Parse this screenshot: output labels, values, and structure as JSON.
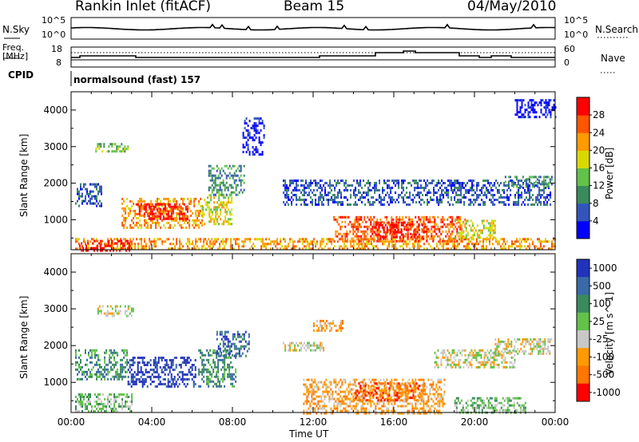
{
  "header": {
    "radar": "Rankin Inlet (fitACF)",
    "beam": "Beam 15",
    "date": "04/May/2010"
  },
  "noise_panel": {
    "left_label": "N.Sky",
    "left_ticks": [
      "10^5",
      "10^0"
    ],
    "right_ticks": [
      "10^5",
      "10^0"
    ],
    "right_label": "N.Search"
  },
  "freq_panel": {
    "left_label_1": "Freq.",
    "left_label_2": "[MHz]",
    "left_ticks": [
      "18",
      "8"
    ],
    "right_ticks": [
      "60",
      "0"
    ],
    "right_label": "Nave"
  },
  "cpid_panel": {
    "label": "CPID",
    "text": "normalsound (fast) 157"
  },
  "colors": {
    "power": [
      "#0000ff",
      "#3355bb",
      "#3a8a5c",
      "#62c24a",
      "#d9d900",
      "#ff9a00",
      "#ff5500",
      "#ff0000"
    ],
    "velocity": [
      "#2233bb",
      "#3a6aa8",
      "#3a8a5c",
      "#62c24a",
      "#c8c8c8",
      "#ff9a00",
      "#ff7700",
      "#ff0000"
    ]
  },
  "chart_data": [
    {
      "type": "heatmap",
      "title": "",
      "xlabel": "Time UT",
      "ylabel": "Slant Range [km]",
      "x_ticks": [
        "00:00",
        "04:00",
        "08:00",
        "12:00",
        "16:00",
        "20:00",
        "00:00"
      ],
      "y_ticks": [
        "1000",
        "2000",
        "3000",
        "4000"
      ],
      "xlim": [
        0,
        24
      ],
      "ylim": [
        180,
        4500
      ],
      "colorbar_label": "Power [dB]",
      "colorbar_ticks": [
        "4",
        "8",
        "12",
        "16",
        "20",
        "24",
        "28"
      ],
      "regions": [
        {
          "t": [
            0.2,
            24.0
          ],
          "r": [
            180,
            500
          ],
          "level": 5
        },
        {
          "t": [
            0.4,
            3.0
          ],
          "r": [
            180,
            450
          ],
          "level": 7
        },
        {
          "t": [
            2.5,
            6.5
          ],
          "r": [
            800,
            1600
          ],
          "level": 5
        },
        {
          "t": [
            3.2,
            5.8
          ],
          "r": [
            1000,
            1450
          ],
          "level": 7
        },
        {
          "t": [
            6.5,
            8.0
          ],
          "r": [
            900,
            1700
          ],
          "level": 4
        },
        {
          "t": [
            6.8,
            8.6
          ],
          "r": [
            1700,
            2500
          ],
          "level": 2
        },
        {
          "t": [
            1.2,
            2.8
          ],
          "r": [
            2850,
            3100
          ],
          "level": 3
        },
        {
          "t": [
            0.2,
            1.5
          ],
          "r": [
            1400,
            2000
          ],
          "level": 1
        },
        {
          "t": [
            13.0,
            19.5
          ],
          "r": [
            400,
            1100
          ],
          "level": 6
        },
        {
          "t": [
            15.0,
            17.5
          ],
          "r": [
            550,
            950
          ],
          "level": 7
        },
        {
          "t": [
            10.5,
            23.8
          ],
          "r": [
            1400,
            2100
          ],
          "level": 1
        },
        {
          "t": [
            21.5,
            23.8
          ],
          "r": [
            1900,
            2200
          ],
          "level": 2
        },
        {
          "t": [
            19.0,
            21.0
          ],
          "r": [
            500,
            1000
          ],
          "level": 4
        },
        {
          "t": [
            22.0,
            24.0
          ],
          "r": [
            3800,
            4300
          ],
          "level": 0
        },
        {
          "t": [
            8.5,
            9.6
          ],
          "r": [
            2800,
            3800
          ],
          "level": 0
        }
      ]
    },
    {
      "type": "heatmap",
      "title": "",
      "xlabel": "Time UT",
      "ylabel": "Slant Range [km]",
      "x_ticks": [
        "00:00",
        "04:00",
        "08:00",
        "12:00",
        "16:00",
        "20:00",
        "00:00"
      ],
      "y_ticks": [
        "1000",
        "2000",
        "3000",
        "4000"
      ],
      "xlim": [
        0,
        24
      ],
      "ylim": [
        180,
        4500
      ],
      "colorbar_label": "Velocity [m s^-1]",
      "colorbar_ticks": [
        "1000",
        "500",
        "100",
        "25",
        "-25",
        "-100",
        "-500",
        "-1000"
      ],
      "regions": [
        {
          "t": [
            0.2,
            3.0
          ],
          "r": [
            180,
            700
          ],
          "level": 3
        },
        {
          "t": [
            2.8,
            6.2
          ],
          "r": [
            900,
            1700
          ],
          "level": 0
        },
        {
          "t": [
            6.3,
            8.2
          ],
          "r": [
            900,
            1900
          ],
          "level": 2
        },
        {
          "t": [
            7.2,
            8.8
          ],
          "r": [
            1700,
            2400
          ],
          "level": 1
        },
        {
          "t": [
            0.2,
            2.8
          ],
          "r": [
            1100,
            1900
          ],
          "level": 2
        },
        {
          "t": [
            1.3,
            3.2
          ],
          "r": [
            2800,
            3100
          ],
          "level": 4
        },
        {
          "t": [
            11.5,
            18.5
          ],
          "r": [
            180,
            1100
          ],
          "level": 5
        },
        {
          "t": [
            14.0,
            17.5
          ],
          "r": [
            500,
            1000
          ],
          "level": 6
        },
        {
          "t": [
            10.5,
            12.5
          ],
          "r": [
            1900,
            2100
          ],
          "level": 4
        },
        {
          "t": [
            18.0,
            22.0
          ],
          "r": [
            1400,
            1900
          ],
          "level": 4
        },
        {
          "t": [
            21.0,
            23.8
          ],
          "r": [
            1800,
            2200
          ],
          "level": 4
        },
        {
          "t": [
            19.0,
            22.5
          ],
          "r": [
            180,
            600
          ],
          "level": 3
        },
        {
          "t": [
            12.0,
            13.5
          ],
          "r": [
            2400,
            2700
          ],
          "level": 5
        }
      ]
    }
  ]
}
